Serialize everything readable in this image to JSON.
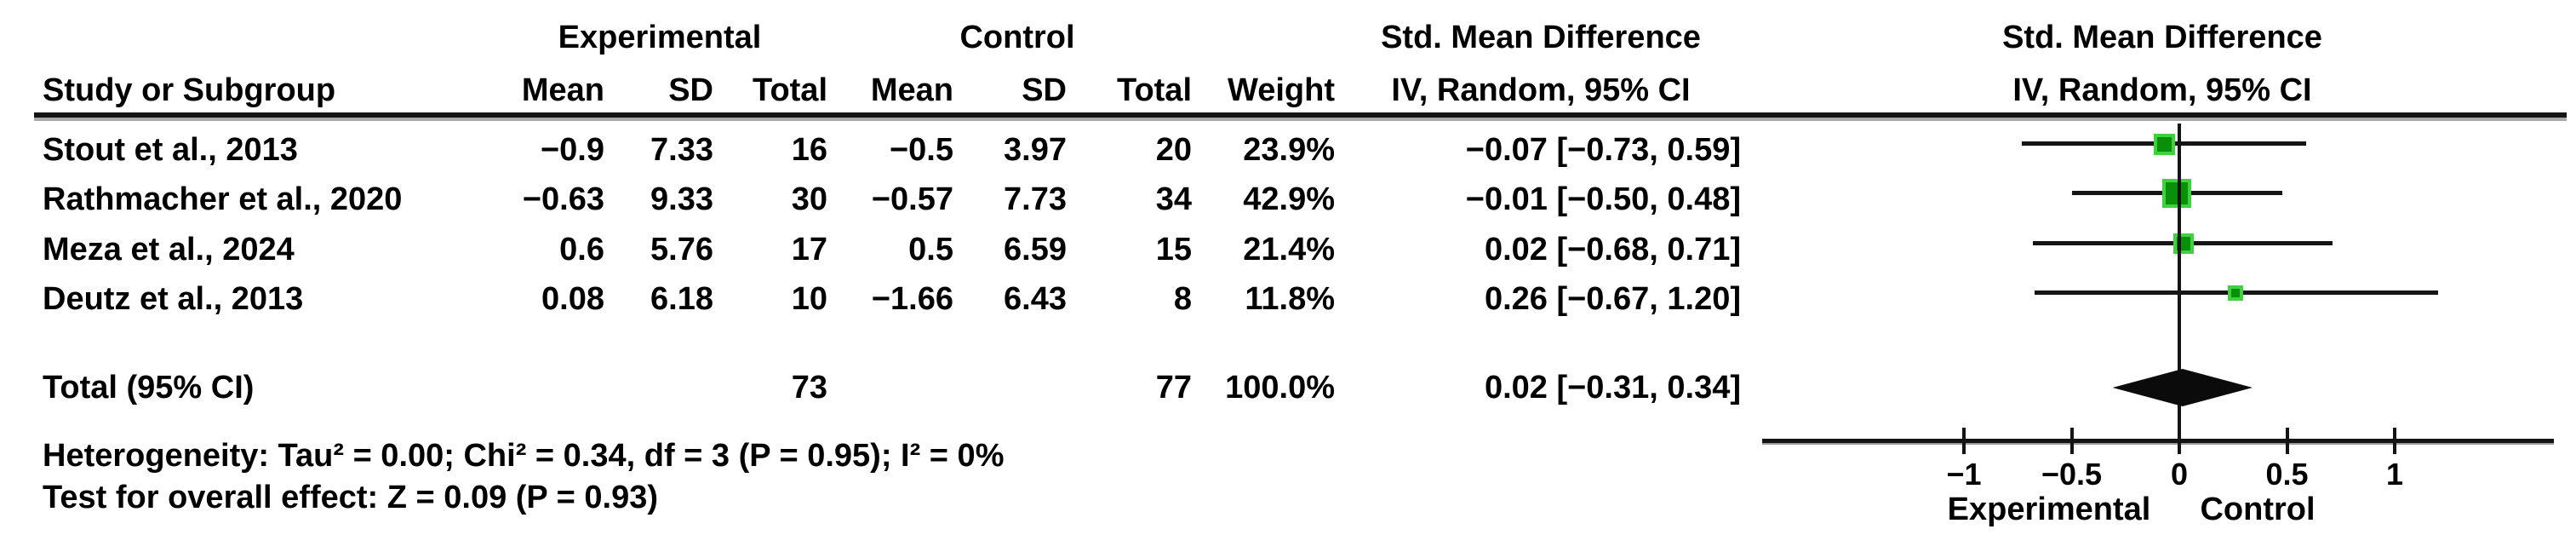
{
  "table": {
    "header_row1": {
      "experimental": "Experimental",
      "control": "Control",
      "smd_text_col": "Std. Mean Difference",
      "smd_plot_col": "Std. Mean Difference"
    },
    "header_row2": {
      "study": "Study or Subgroup",
      "mean": "Mean",
      "sd": "SD",
      "total": "Total",
      "weight": "Weight",
      "iv_text_col": "IV, Random, 95% CI",
      "iv_plot_col": "IV, Random, 95% CI"
    },
    "studies": [
      {
        "name": "Stout et al., 2013",
        "exp_mean": "−0.9",
        "exp_sd": "7.33",
        "exp_total": "16",
        "ctrl_mean": "−0.5",
        "ctrl_sd": "3.97",
        "ctrl_total": "20",
        "weight": "23.9%",
        "ci_text": "−0.07 [−0.73, 0.59]",
        "est": -0.07,
        "lo": -0.73,
        "hi": 0.59,
        "weight_val": 23.9
      },
      {
        "name": "Rathmacher et al., 2020",
        "exp_mean": "−0.63",
        "exp_sd": "9.33",
        "exp_total": "30",
        "ctrl_mean": "−0.57",
        "ctrl_sd": "7.73",
        "ctrl_total": "34",
        "weight": "42.9%",
        "ci_text": "−0.01 [−0.50, 0.48]",
        "est": -0.01,
        "lo": -0.5,
        "hi": 0.48,
        "weight_val": 42.9
      },
      {
        "name": "Meza et al., 2024",
        "exp_mean": "0.6",
        "exp_sd": "5.76",
        "exp_total": "17",
        "ctrl_mean": "0.5",
        "ctrl_sd": "6.59",
        "ctrl_total": "15",
        "weight": "21.4%",
        "ci_text": "0.02 [−0.68, 0.71]",
        "est": 0.02,
        "lo": -0.68,
        "hi": 0.71,
        "weight_val": 21.4
      },
      {
        "name": "Deutz et al., 2013",
        "exp_mean": "0.08",
        "exp_sd": "6.18",
        "exp_total": "10",
        "ctrl_mean": "−1.66",
        "ctrl_sd": "6.43",
        "ctrl_total": "8",
        "weight": "11.8%",
        "ci_text": "0.26 [−0.67, 1.20]",
        "est": 0.26,
        "lo": -0.67,
        "hi": 1.2,
        "weight_val": 11.8
      }
    ],
    "total_row": {
      "label": "Total (95% CI)",
      "exp_total": "73",
      "ctrl_total": "77",
      "weight": "100.0%",
      "ci_text": "0.02 [−0.31, 0.34]",
      "est": 0.02,
      "lo": -0.31,
      "hi": 0.34
    },
    "footnotes": {
      "heterogeneity": "Heterogeneity: Tau² = 0.00; Chi² = 0.34, df = 3 (P = 0.95); I² = 0%",
      "overall_effect": "Test for overall effect: Z = 0.09 (P = 0.93)"
    }
  },
  "plot": {
    "marker_color": "#0a8f0a",
    "marker_border_color": "#3fd23f",
    "diamond_color": "#0b0b0b",
    "axis_ticks": [
      {
        "v": -1,
        "label": "−1"
      },
      {
        "v": -0.5,
        "label": "−0.5"
      },
      {
        "v": 0,
        "label": "0"
      },
      {
        "v": 0.5,
        "label": "0.5"
      },
      {
        "v": 1,
        "label": "1"
      }
    ],
    "xlabel_left": "Experimental",
    "xlabel_right": "Control"
  },
  "chart_data": {
    "type": "forest",
    "title": "Std. Mean Difference — IV, Random, 95% CI",
    "effect_measure": "Std. Mean Difference",
    "model": "IV, Random, 95% CI",
    "points": [
      {
        "study": "Stout et al., 2013",
        "exp": {
          "mean": -0.9,
          "sd": 7.33,
          "total": 16
        },
        "ctrl": {
          "mean": -0.5,
          "sd": 3.97,
          "total": 20
        },
        "weight_pct": 23.9,
        "smd": -0.07,
        "ci": [
          -0.73,
          0.59
        ]
      },
      {
        "study": "Rathmacher et al., 2020",
        "exp": {
          "mean": -0.63,
          "sd": 9.33,
          "total": 30
        },
        "ctrl": {
          "mean": -0.57,
          "sd": 7.73,
          "total": 34
        },
        "weight_pct": 42.9,
        "smd": -0.01,
        "ci": [
          -0.5,
          0.48
        ]
      },
      {
        "study": "Meza et al., 2024",
        "exp": {
          "mean": 0.6,
          "sd": 5.76,
          "total": 17
        },
        "ctrl": {
          "mean": 0.5,
          "sd": 6.59,
          "total": 15
        },
        "weight_pct": 21.4,
        "smd": 0.02,
        "ci": [
          -0.68,
          0.71
        ]
      },
      {
        "study": "Deutz et al., 2013",
        "exp": {
          "mean": 0.08,
          "sd": 6.18,
          "total": 10
        },
        "ctrl": {
          "mean": -1.66,
          "sd": 6.43,
          "total": 8
        },
        "weight_pct": 11.8,
        "smd": 0.26,
        "ci": [
          -0.67,
          1.2
        ]
      }
    ],
    "total": {
      "label": "Total (95% CI)",
      "exp_total": 73,
      "ctrl_total": 77,
      "weight_pct": 100.0,
      "smd": 0.02,
      "ci": [
        -0.31,
        0.34
      ]
    },
    "heterogeneity": {
      "tau2": 0.0,
      "chi2": 0.34,
      "df": 3,
      "p": 0.95,
      "i2_pct": 0
    },
    "overall_effect": {
      "z": 0.09,
      "p": 0.93
    },
    "xlim": [
      -1.95,
      1.74
    ],
    "ticks": [
      -1,
      -0.5,
      0,
      0.5,
      1
    ],
    "xlabel_left": "Experimental",
    "xlabel_right": "Control",
    "grid": false,
    "legend": "none"
  }
}
